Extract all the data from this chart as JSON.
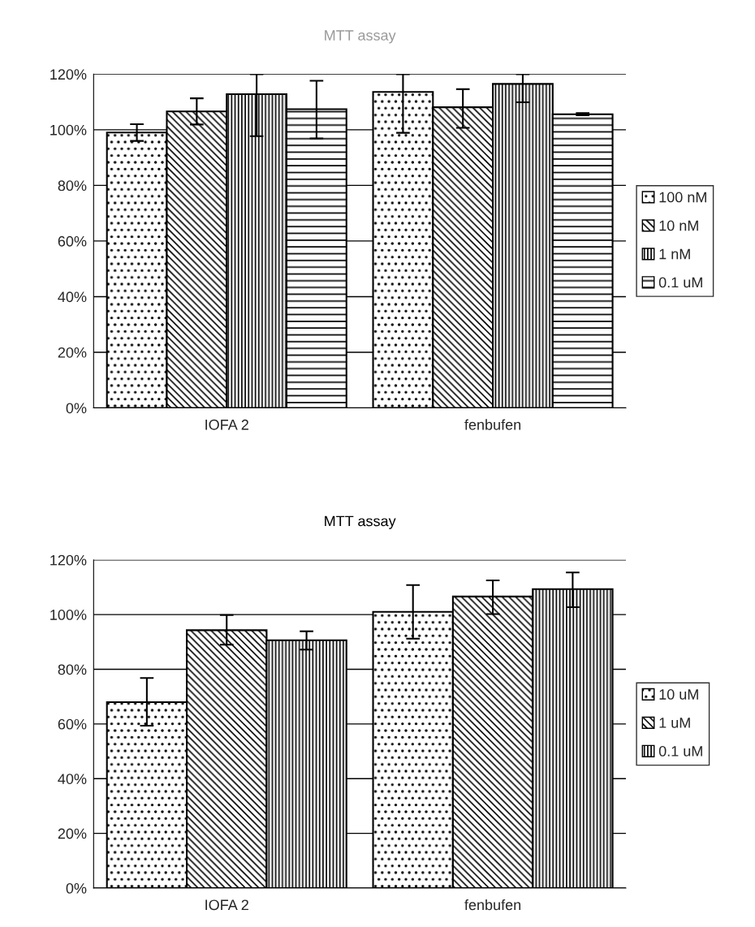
{
  "chart_data": [
    {
      "type": "bar",
      "title": "MTT assay",
      "categories": [
        "IOFA 2",
        "fenbufen"
      ],
      "ylim": [
        0,
        120
      ],
      "yticks": [
        {
          "value": 0,
          "label": "0%"
        },
        {
          "value": 20,
          "label": "20%"
        },
        {
          "value": 40,
          "label": "40%"
        },
        {
          "value": 60,
          "label": "60%"
        },
        {
          "value": 80,
          "label": "80%"
        },
        {
          "value": 100,
          "label": "100%"
        },
        {
          "value": 120,
          "label": "120%"
        }
      ],
      "grid": "y",
      "legend": "right",
      "series": [
        {
          "name": "100 nM",
          "color": "#000000",
          "values": [
            99,
            113.6
          ],
          "errors": [
            [
              96,
              102
            ],
            [
              98.9,
              120
            ]
          ]
        },
        {
          "name": "10 nM",
          "color": "#000000",
          "values": [
            106.6,
            108.1
          ],
          "errors": [
            [
              101.9,
              111.3
            ],
            [
              100.7,
              114.6
            ]
          ]
        },
        {
          "name": "1 nM",
          "color": "#000000",
          "values": [
            112.8,
            116.5
          ],
          "errors": [
            [
              97.7,
              120
            ],
            [
              109.9,
              120
            ]
          ]
        },
        {
          "name": "0.1 uM",
          "color": "#000000",
          "values": [
            107.4,
            105.6
          ],
          "errors": [
            [
              96.9,
              117.6
            ],
            [
              105.2,
              106
            ]
          ]
        }
      ]
    },
    {
      "type": "bar",
      "title": "MTT assay",
      "categories": [
        "IOFA 2",
        "fenbufen"
      ],
      "ylim": [
        0,
        120
      ],
      "yticks": [
        {
          "value": 0,
          "label": "0%"
        },
        {
          "value": 20,
          "label": "20%"
        },
        {
          "value": 40,
          "label": "40%"
        },
        {
          "value": 60,
          "label": "60%"
        },
        {
          "value": 80,
          "label": "80%"
        },
        {
          "value": 100,
          "label": "100%"
        },
        {
          "value": 120,
          "label": "120%"
        }
      ],
      "grid": "y",
      "legend": "right",
      "series": [
        {
          "name": "10 uM",
          "color": "#000000",
          "values": [
            68,
            101
          ],
          "errors": [
            [
              59.4,
              76.8
            ],
            [
              91.2,
              110.8
            ]
          ]
        },
        {
          "name": "1 uM",
          "color": "#000000",
          "values": [
            94.3,
            106.6
          ],
          "errors": [
            [
              89,
              99.8
            ],
            [
              100.2,
              112.5
            ]
          ]
        },
        {
          "name": "0.1 uM",
          "color": "#000000",
          "values": [
            90.6,
            109.3
          ],
          "errors": [
            [
              87.2,
              93.9
            ],
            [
              102.7,
              115.4
            ]
          ]
        }
      ]
    }
  ]
}
